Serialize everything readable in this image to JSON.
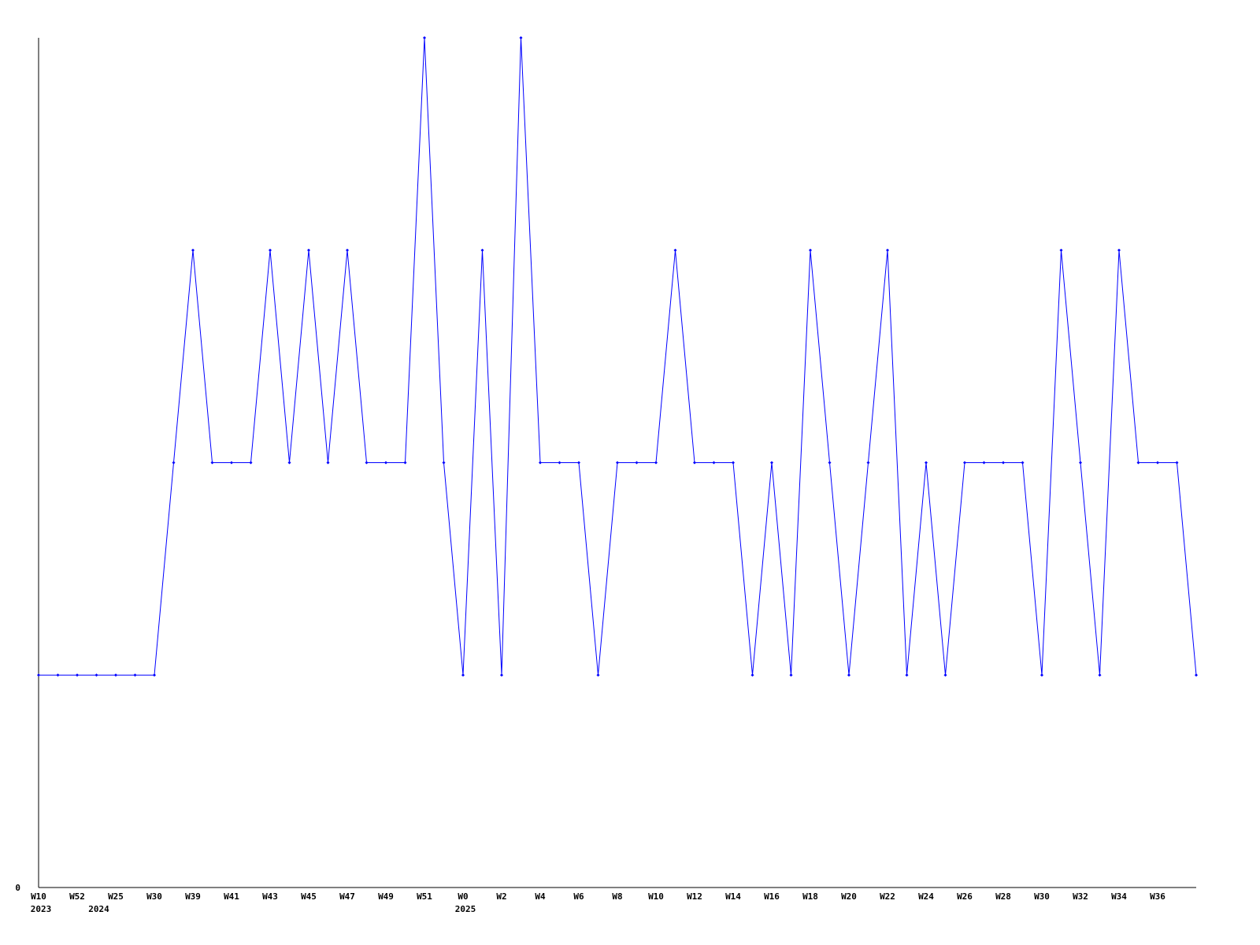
{
  "chart_data": {
    "type": "line",
    "title": "",
    "xlabel": "",
    "ylabel": "",
    "ylim": [
      0,
      4
    ],
    "y_tick_labels": [
      {
        "value": 0,
        "label": "0"
      }
    ],
    "grid": false,
    "line_color": "#0000ff",
    "axis_color": "#000000",
    "values": [
      1,
      1,
      1,
      1,
      1,
      1,
      1,
      2,
      3,
      2,
      2,
      2,
      3,
      2,
      3,
      2,
      3,
      2,
      2,
      2,
      4,
      2,
      1,
      3,
      1,
      4,
      2,
      2,
      2,
      1,
      2,
      2,
      2,
      3,
      2,
      2,
      2,
      1,
      2,
      1,
      3,
      2,
      1,
      2,
      3,
      1,
      2,
      1,
      2,
      2,
      2,
      2,
      1,
      3,
      2,
      1,
      3,
      2,
      2,
      2,
      1
    ],
    "x_ticks": [
      {
        "index": 0,
        "label": "W10"
      },
      {
        "index": 2,
        "label": "W52"
      },
      {
        "index": 4,
        "label": "W25"
      },
      {
        "index": 6,
        "label": "W30"
      },
      {
        "index": 8,
        "label": "W39"
      },
      {
        "index": 10,
        "label": "W41"
      },
      {
        "index": 12,
        "label": "W43"
      },
      {
        "index": 14,
        "label": "W45"
      },
      {
        "index": 16,
        "label": "W47"
      },
      {
        "index": 18,
        "label": "W49"
      },
      {
        "index": 20,
        "label": "W51"
      },
      {
        "index": 22,
        "label": "W0"
      },
      {
        "index": 24,
        "label": "W2"
      },
      {
        "index": 26,
        "label": "W4"
      },
      {
        "index": 28,
        "label": "W6"
      },
      {
        "index": 30,
        "label": "W8"
      },
      {
        "index": 32,
        "label": "W10"
      },
      {
        "index": 34,
        "label": "W12"
      },
      {
        "index": 36,
        "label": "W14"
      },
      {
        "index": 38,
        "label": "W16"
      },
      {
        "index": 40,
        "label": "W18"
      },
      {
        "index": 42,
        "label": "W20"
      },
      {
        "index": 44,
        "label": "W22"
      },
      {
        "index": 46,
        "label": "W24"
      },
      {
        "index": 48,
        "label": "W26"
      },
      {
        "index": 50,
        "label": "W28"
      },
      {
        "index": 52,
        "label": "W30"
      },
      {
        "index": 54,
        "label": "W32"
      },
      {
        "index": 56,
        "label": "W34"
      },
      {
        "index": 58,
        "label": "W36"
      }
    ],
    "year_labels": [
      {
        "index": 0,
        "label": "2023"
      },
      {
        "index": 3,
        "label": "2024"
      },
      {
        "index": 22,
        "label": "2025"
      }
    ]
  }
}
